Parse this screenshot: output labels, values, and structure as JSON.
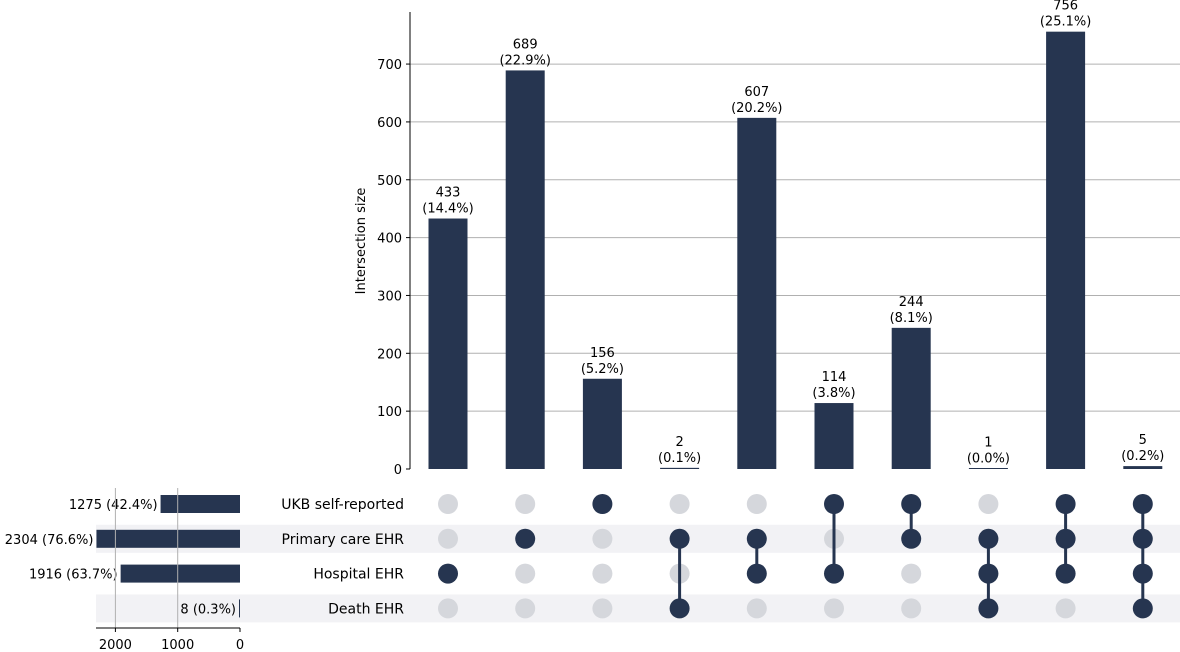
{
  "chart_data": {
    "type": "bar",
    "kind": "upset",
    "ylabel": "Intersection size",
    "ylim": [
      0,
      790
    ],
    "yticks": [
      0,
      100,
      200,
      300,
      400,
      500,
      600,
      700
    ],
    "set_size_ticks": [
      2000,
      1000,
      0
    ],
    "grid": true,
    "colors": {
      "bar": "#263550",
      "dot_inactive": "#d5d7dc",
      "stripe": "#f2f2f5",
      "grid": "#b0b0b0"
    },
    "sets": [
      {
        "name": "UKB self-reported",
        "size": 1275,
        "label": "1275 (42.4%)"
      },
      {
        "name": "Primary care EHR",
        "size": 2304,
        "label": "2304 (76.6%)"
      },
      {
        "name": "Hospital EHR",
        "size": 1916,
        "label": "1916 (63.7%)"
      },
      {
        "name": "Death EHR",
        "size": 8,
        "label": "8 (0.3%)"
      }
    ],
    "intersections": [
      {
        "value": 433,
        "count_label": "433",
        "pct_label": "(14.4%)",
        "members": [
          2
        ]
      },
      {
        "value": 689,
        "count_label": "689",
        "pct_label": "(22.9%)",
        "members": [
          1
        ]
      },
      {
        "value": 156,
        "count_label": "156",
        "pct_label": "(5.2%)",
        "members": [
          0
        ]
      },
      {
        "value": 2,
        "count_label": "2",
        "pct_label": "(0.1%)",
        "members": [
          1,
          3
        ]
      },
      {
        "value": 607,
        "count_label": "607",
        "pct_label": "(20.2%)",
        "members": [
          1,
          2
        ]
      },
      {
        "value": 114,
        "count_label": "114",
        "pct_label": "(3.8%)",
        "members": [
          0,
          2
        ]
      },
      {
        "value": 244,
        "count_label": "244",
        "pct_label": "(8.1%)",
        "members": [
          0,
          1
        ]
      },
      {
        "value": 1,
        "count_label": "1",
        "pct_label": "(0.0%)",
        "members": [
          1,
          2,
          3
        ]
      },
      {
        "value": 756,
        "count_label": "756",
        "pct_label": "(25.1%)",
        "members": [
          0,
          1,
          2
        ]
      },
      {
        "value": 5,
        "count_label": "5",
        "pct_label": "(0.2%)",
        "members": [
          0,
          1,
          2,
          3
        ]
      }
    ]
  }
}
